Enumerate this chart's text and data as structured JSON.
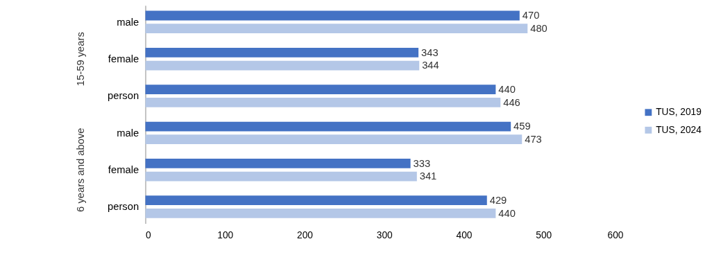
{
  "chart_data": {
    "type": "bar",
    "orientation": "horizontal",
    "categories": [
      "male",
      "female",
      "person",
      "male",
      "female",
      "person"
    ],
    "series": [
      {
        "name": "TUS, 2019",
        "color": "#4472c4",
        "values": [
          470,
          343,
          440,
          459,
          333,
          429
        ]
      },
      {
        "name": "TUS, 2024",
        "color": "#b4c7e7",
        "values": [
          480,
          344,
          446,
          473,
          341,
          440
        ]
      }
    ],
    "xlim": [
      0,
      600
    ],
    "xticks": [
      0,
      100,
      200,
      300,
      400,
      500,
      600
    ],
    "data_labels": true,
    "legend": "right",
    "grid": false,
    "annotations": [
      "15-59 years",
      "6 years and above"
    ]
  }
}
